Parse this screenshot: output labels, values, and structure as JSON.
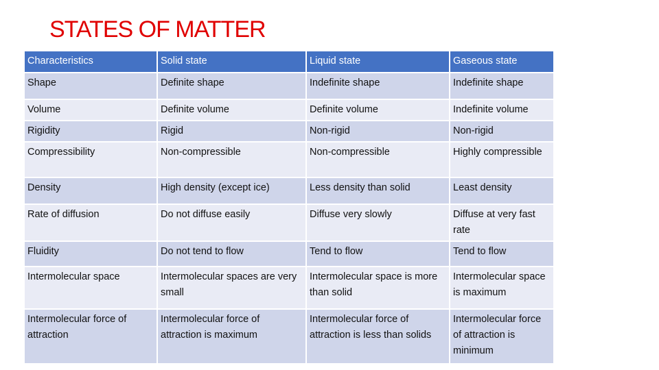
{
  "title": "STATES OF MATTER",
  "colors": {
    "title": "#e00000",
    "header_bg": "#4472c4",
    "row_dark": "#cfd5ea",
    "row_light": "#e9ebf5"
  },
  "table": {
    "headers": [
      "Characteristics",
      "Solid state",
      "Liquid state",
      "Gaseous state"
    ],
    "rows": [
      [
        "Shape",
        "Definite shape",
        "Indefinite shape",
        "Indefinite shape"
      ],
      [
        "Volume",
        "Definite volume",
        "Definite volume",
        "Indefinite volume"
      ],
      [
        "Rigidity",
        "Rigid",
        "Non-rigid",
        "Non-rigid"
      ],
      [
        "Compressibility",
        "Non-compressible",
        "Non-compressible",
        "Highly compressible"
      ],
      [
        "Density",
        "High density (except ice)",
        "Less density than solid",
        "Least density"
      ],
      [
        "Rate of diffusion",
        "Do not diffuse easily",
        "Diffuse very slowly",
        "Diffuse at very fast rate"
      ],
      [
        "Fluidity",
        "Do not tend to flow",
        "Tend to flow",
        "Tend to flow"
      ],
      [
        "Intermolecular space",
        "Intermolecular spaces are very small",
        "Intermolecular space is more than solid",
        "Intermolecular space is maximum"
      ],
      [
        "Intermolecular force of attraction",
        "Intermolecular force of attraction is maximum",
        "Intermolecular force of attraction is less than solids",
        "Intermolecular force of attraction is minimum"
      ]
    ]
  }
}
